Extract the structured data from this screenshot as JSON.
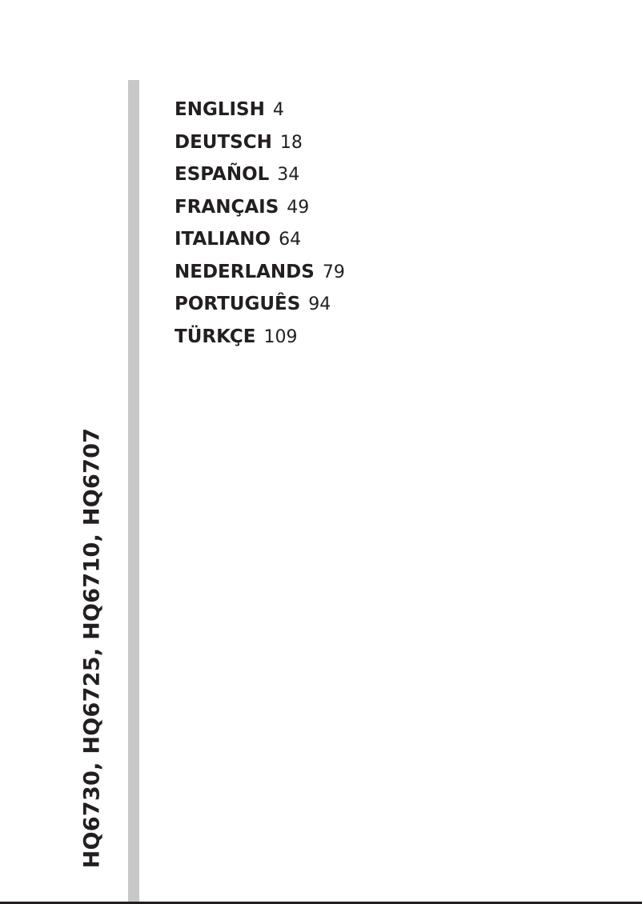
{
  "models": "HQ6730, HQ6725, HQ6710, HQ6707",
  "toc": [
    {
      "language": "ENGLISH",
      "page": "4"
    },
    {
      "language": "DEUTSCH",
      "page": "18"
    },
    {
      "language": "ESPAÑOL",
      "page": "34"
    },
    {
      "language": "FRANÇAIS",
      "page": "49"
    },
    {
      "language": "ITALIANO",
      "page": "64"
    },
    {
      "language": "NEDERLANDS",
      "page": "79"
    },
    {
      "language": "PORTUGUÊS",
      "page": "94"
    },
    {
      "language": "TÜRKÇE",
      "page": "109"
    }
  ],
  "colors": {
    "text": "#231f20",
    "bar": "#c8c8c8"
  }
}
